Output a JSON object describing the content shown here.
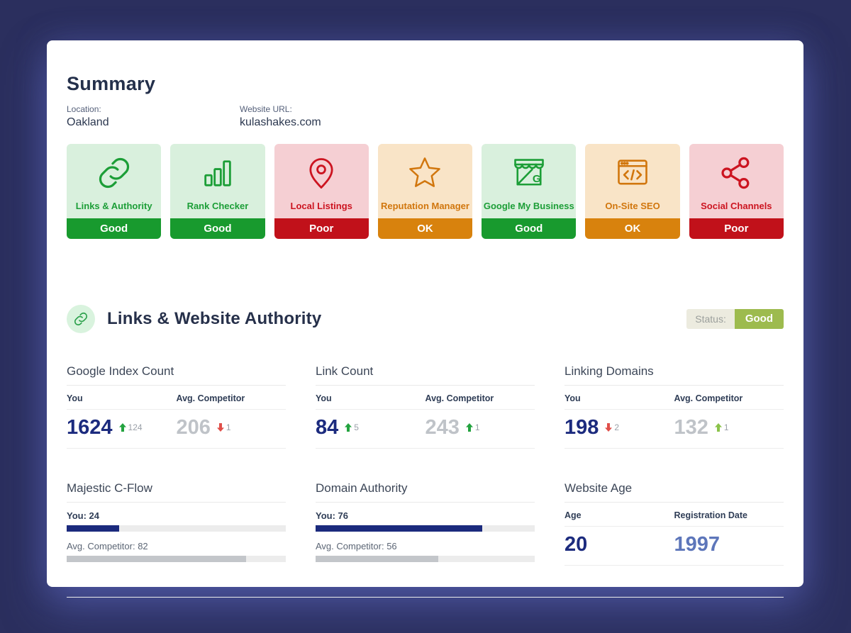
{
  "app": {
    "background_color": "#2b2f5e",
    "panel_color": "#ffffff"
  },
  "summary": {
    "title": "Summary",
    "location_label": "Location:",
    "location_value": "Oakland",
    "website_label": "Website URL:",
    "website_value": "kulashakes.com",
    "theme_colors": {
      "green": {
        "body": "#d9f0dd",
        "foreground": "#1c9e37",
        "footer": "#189a2e"
      },
      "red": {
        "body": "#f5cfd3",
        "foreground": "#cc1420",
        "footer": "#c1111a"
      },
      "orange": {
        "body": "#f9e4c7",
        "foreground": "#d1760d",
        "footer": "#d8820d"
      }
    },
    "cards": [
      {
        "label": "Links & Authority",
        "status": "Good",
        "theme": "green",
        "icon": "link-icon"
      },
      {
        "label": "Rank Checker",
        "status": "Good",
        "theme": "green",
        "icon": "bar-chart-icon"
      },
      {
        "label": "Local Listings",
        "status": "Poor",
        "theme": "red",
        "icon": "map-pin-icon"
      },
      {
        "label": "Reputation Manager",
        "status": "OK",
        "theme": "orange",
        "icon": "star-icon"
      },
      {
        "label": "Google My Business",
        "status": "Good",
        "theme": "green",
        "icon": "storefront-icon"
      },
      {
        "label": "On-Site SEO",
        "status": "OK",
        "theme": "orange",
        "icon": "code-window-icon"
      },
      {
        "label": "Social Channels",
        "status": "Poor",
        "theme": "red",
        "icon": "share-icon"
      }
    ]
  },
  "links_section": {
    "icon": "link-icon",
    "title": "Links & Website Authority",
    "status_label": "Status:",
    "status_value": "Good",
    "status_value_color": "#9dbb4e"
  },
  "metrics": {
    "value_colors": {
      "you": "#1c2b7e",
      "competitor": "#bfc3c8",
      "year": "#5d76ba"
    },
    "google_index": {
      "title": "Google Index Count",
      "you_label": "You",
      "competitor_label": "Avg. Competitor",
      "you_value": "1624",
      "you_delta": {
        "direction": "up",
        "value": "124",
        "color": "#23a33f"
      },
      "competitor_value": "206",
      "competitor_delta": {
        "direction": "down",
        "value": "1",
        "color": "#e04f4a"
      }
    },
    "link_count": {
      "title": "Link Count",
      "you_label": "You",
      "competitor_label": "Avg. Competitor",
      "you_value": "84",
      "you_delta": {
        "direction": "up",
        "value": "5",
        "color": "#23a33f"
      },
      "competitor_value": "243",
      "competitor_delta": {
        "direction": "up",
        "value": "1",
        "color": "#23a33f"
      }
    },
    "linking_domains": {
      "title": "Linking Domains",
      "you_label": "You",
      "competitor_label": "Avg. Competitor",
      "you_value": "198",
      "you_delta": {
        "direction": "down",
        "value": "2",
        "color": "#e04f4a"
      },
      "competitor_value": "132",
      "competitor_delta": {
        "direction": "up",
        "value": "1",
        "color": "#8bc34a"
      }
    },
    "majestic_cflow": {
      "title": "Majestic C-Flow",
      "you_label": "You: 24",
      "you_value": 24,
      "competitor_label": "Avg. Competitor: 82",
      "competitor_value": 82
    },
    "domain_authority": {
      "title": "Domain Authority",
      "you_label": "You: 76",
      "you_value": 76,
      "competitor_label": "Avg. Competitor: 56",
      "competitor_value": 56
    },
    "website_age": {
      "title": "Website Age",
      "age_label": "Age",
      "age_value": "20",
      "registration_label": "Registration Date",
      "registration_value": "1997"
    }
  }
}
